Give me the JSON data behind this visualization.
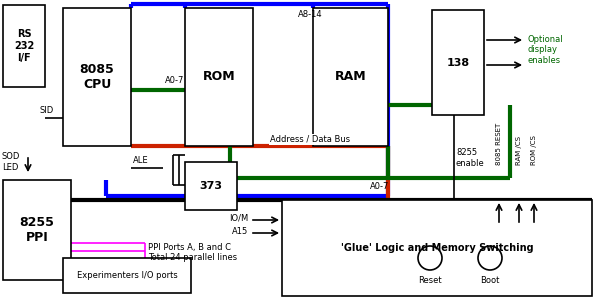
{
  "figsize": [
    6.0,
    3.0
  ],
  "dpi": 100,
  "blocks": {
    "rs232": [
      3,
      5,
      42,
      82
    ],
    "cpu": [
      63,
      8,
      68,
      138
    ],
    "rom": [
      185,
      8,
      68,
      138
    ],
    "ram": [
      313,
      8,
      75,
      138
    ],
    "ic138": [
      432,
      10,
      52,
      105
    ],
    "ic373": [
      185,
      162,
      52,
      48
    ],
    "ppi": [
      3,
      180,
      68,
      100
    ],
    "glue": [
      282,
      200,
      310,
      96
    ],
    "exp_io": [
      63,
      258,
      128,
      35
    ]
  },
  "block_labels": {
    "rs232": "RS\n232\nI/F",
    "cpu": "8085\nCPU",
    "rom": "ROM",
    "ram": "RAM",
    "ic138": "138",
    "ic373": "373",
    "ppi": "8255\nPPI",
    "glue": "'Glue' Logic and Memory Switching",
    "exp_io": "Experimenters I/O ports"
  },
  "block_fontsizes": {
    "rs232": 7,
    "cpu": 9,
    "rom": 9,
    "ram": 9,
    "ic138": 8,
    "ic373": 8,
    "ppi": 9,
    "glue": 7,
    "exp_io": 6
  },
  "blue": "#0000ff",
  "red": "#cc2200",
  "green": "#006600",
  "black": "#000000",
  "magenta": "#ff00ff",
  "lw_bus": 3.0,
  "lw_line": 1.2
}
